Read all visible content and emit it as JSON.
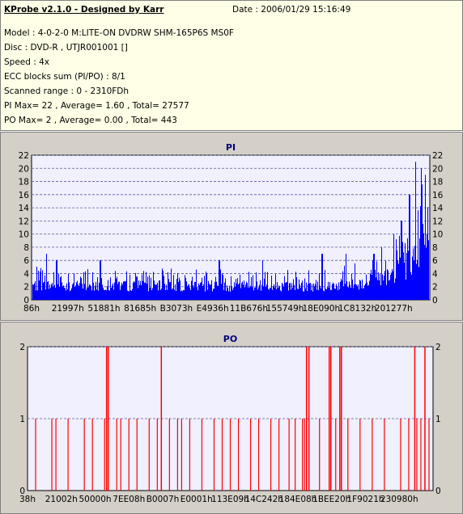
{
  "header": {
    "title": "KProbe v2.1.0 - Designed by Karr",
    "date": "Date : 2006/01/29 15:16:49",
    "lines": [
      "Model : 4-0-2-0 M:LITE-ON DVDRW SHM-165P6S MS0F",
      "Disc : DVD-R , UTJR001001 []",
      "Speed : 4x",
      "ECC blocks sum (PI/PO) : 8/1",
      "Scanned range : 0 - 2310FDh",
      "PI Max= 22 , Average= 1.60 , Total= 27577",
      "PO Max= 2 , Average= 0.00 , Total= 443"
    ]
  },
  "chart_data": [
    {
      "type": "bar",
      "title": "PI",
      "color": "#0000ff",
      "ylim": [
        0,
        22
      ],
      "yticks": [
        0,
        2,
        4,
        6,
        8,
        10,
        12,
        14,
        16,
        18,
        20,
        22
      ],
      "grid": true,
      "xtick_labels": [
        "86h",
        "21997h",
        "51881h",
        "81685h",
        "B3073h",
        "E4936h",
        "11B676h",
        "155749h",
        "18E090h",
        "1C8132h",
        "201277h"
      ],
      "profile": [
        [
          0,
          2.2
        ],
        [
          0.7,
          2.0
        ],
        [
          0.85,
          2.6
        ],
        [
          0.9,
          3.5
        ],
        [
          0.95,
          5.5
        ],
        [
          0.97,
          7.5
        ],
        [
          1.0,
          9.0
        ]
      ],
      "peaks": [
        [
          0.035,
          7
        ],
        [
          0.06,
          6
        ],
        [
          0.17,
          6
        ],
        [
          0.47,
          6
        ],
        [
          0.58,
          6
        ],
        [
          0.73,
          7
        ],
        [
          0.79,
          7
        ],
        [
          0.86,
          7
        ],
        [
          0.88,
          8
        ],
        [
          0.91,
          10
        ],
        [
          0.93,
          12
        ],
        [
          0.95,
          16
        ],
        [
          0.965,
          21
        ],
        [
          0.98,
          20
        ],
        [
          0.99,
          19
        ]
      ]
    },
    {
      "type": "bar",
      "title": "PO",
      "color": "#ff0000",
      "ylim": [
        0,
        2
      ],
      "yticks": [
        0,
        1,
        2
      ],
      "grid": true,
      "xtick_labels": [
        "38h",
        "21002h",
        "50000h",
        "7EE08h",
        "B0007h",
        "E0001h",
        "113E09h",
        "14C242h",
        "184E08h",
        "1BEE20h",
        "1F9021h",
        "230980h"
      ],
      "twos": [
        0.195,
        0.199,
        0.33,
        0.688,
        0.694,
        0.744,
        0.748,
        0.77,
        0.774,
        0.955,
        0.98
      ],
      "ones": [
        0.02,
        0.06,
        0.07,
        0.1,
        0.14,
        0.16,
        0.19,
        0.22,
        0.23,
        0.25,
        0.27,
        0.3,
        0.32,
        0.35,
        0.37,
        0.38,
        0.4,
        0.43,
        0.46,
        0.48,
        0.5,
        0.52,
        0.55,
        0.57,
        0.6,
        0.62,
        0.645,
        0.66,
        0.678,
        0.683,
        0.72,
        0.76,
        0.79,
        0.82,
        0.85,
        0.88,
        0.92,
        0.94,
        0.96,
        0.97,
        0.99
      ]
    }
  ]
}
